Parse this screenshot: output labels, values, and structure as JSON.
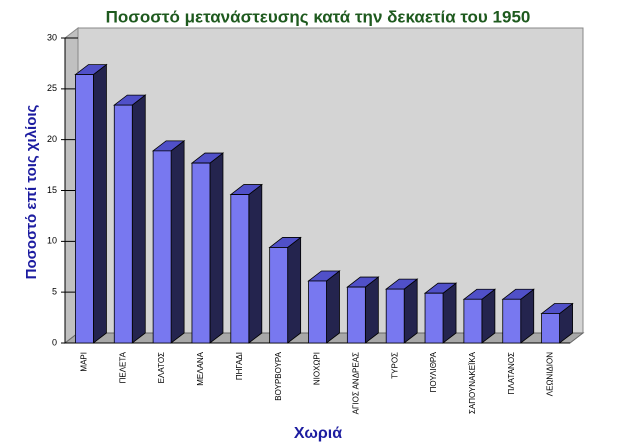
{
  "chart_data": {
    "type": "bar3d",
    "title": "Ποσοστό μετανάστευσης κατά την δεκαετία του 1950",
    "y_label": "Ποσοστό επί τοις χιλίοις",
    "x_label": "Χωριά",
    "categories": [
      "ΜΑΡΙ",
      "ΠΕΛΕΤΑ",
      "ΕΛΑΤΟΣ",
      "ΜΕΛΑΝΑ",
      "ΠΗΓΑΔΙ",
      "ΒΟΥΡΒΟΥΡΑ",
      "ΝΙΟΧΩΡΙ",
      "ΑΓΙΟΣ ΑΝΔΡΕΑΣ",
      "ΤΥΡΟΣ",
      "ΠΟΥΛΙΘΡΑ",
      "ΣΑΠΟΥΝΑΚΕΪΚΑ",
      "ΠΛΑΤΑΝΟΣ",
      "ΛΕΩΝΙΔΙΟΝ"
    ],
    "values": [
      26.4,
      23.4,
      18.9,
      17.7,
      14.6,
      9.4,
      6.1,
      5.5,
      5.3,
      4.9,
      4.3,
      4.3,
      2.9
    ],
    "color": "#7878f0",
    "ylim": [
      0,
      30
    ],
    "yticks": [
      0,
      5,
      10,
      15,
      20,
      25,
      30
    ]
  }
}
